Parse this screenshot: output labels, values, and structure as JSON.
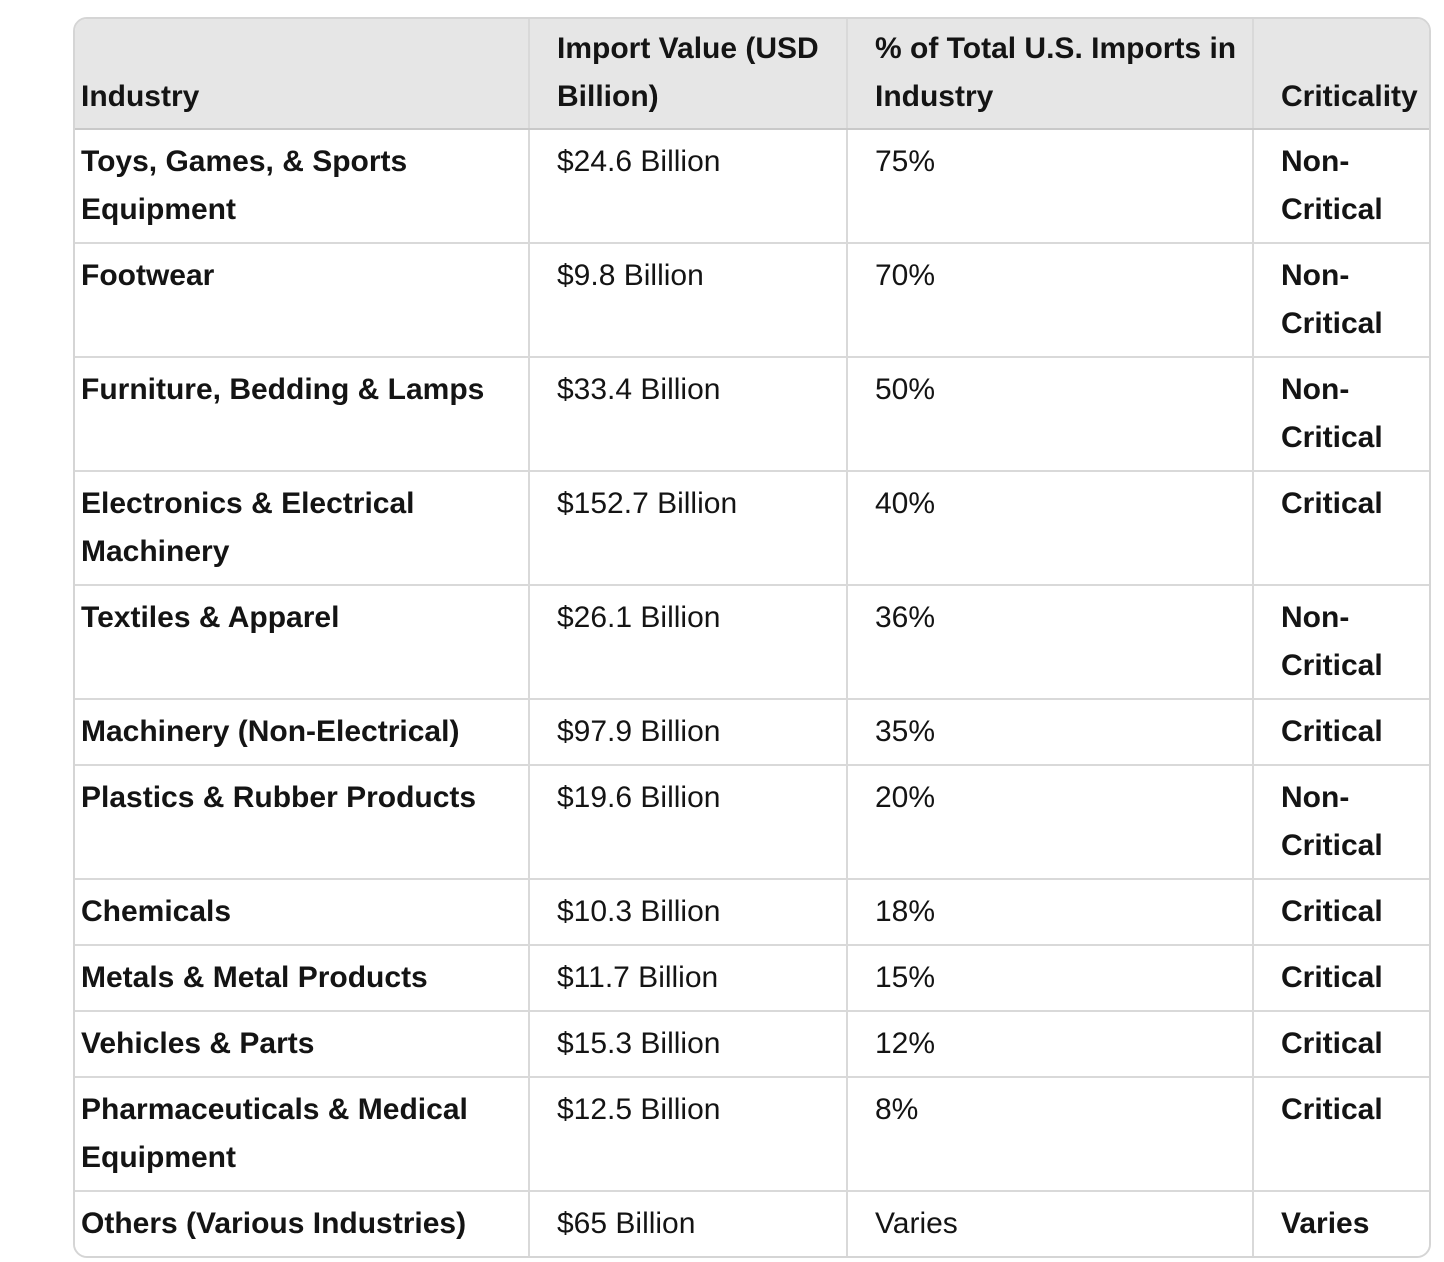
{
  "colors": {
    "page_background": "#ffffff",
    "header_background": "#e6e6e6",
    "grid_border": "#d9d9d9",
    "header_underline": "#c9c9c9",
    "text": "#141414"
  },
  "table": {
    "columns": [
      {
        "label": "Industry"
      },
      {
        "label": "Import Value (USD Billion)"
      },
      {
        "label": "% of Total U.S. Imports in Industry"
      },
      {
        "label": "Criticality"
      }
    ],
    "rows": [
      {
        "industry": "Toys, Games, & Sports Equipment",
        "import_value": "$24.6 Billion",
        "pct_of_imports": "75%",
        "criticality": "Non-Critical"
      },
      {
        "industry": "Footwear",
        "import_value": "$9.8 Billion",
        "pct_of_imports": "70%",
        "criticality": "Non-Critical"
      },
      {
        "industry": "Furniture, Bedding & Lamps",
        "import_value": "$33.4 Billion",
        "pct_of_imports": "50%",
        "criticality": "Non-Critical"
      },
      {
        "industry": "Electronics & Electrical Machinery",
        "import_value": "$152.7 Billion",
        "pct_of_imports": "40%",
        "criticality": "Critical"
      },
      {
        "industry": "Textiles & Apparel",
        "import_value": "$26.1 Billion",
        "pct_of_imports": "36%",
        "criticality": "Non-Critical"
      },
      {
        "industry": "Machinery (Non-Electrical)",
        "import_value": "$97.9 Billion",
        "pct_of_imports": "35%",
        "criticality": "Critical"
      },
      {
        "industry": "Plastics & Rubber Products",
        "import_value": "$19.6 Billion",
        "pct_of_imports": "20%",
        "criticality": "Non-Critical"
      },
      {
        "industry": "Chemicals",
        "import_value": "$10.3 Billion",
        "pct_of_imports": "18%",
        "criticality": "Critical"
      },
      {
        "industry": "Metals & Metal Products",
        "import_value": "$11.7 Billion",
        "pct_of_imports": "15%",
        "criticality": "Critical"
      },
      {
        "industry": "Vehicles & Parts",
        "import_value": "$15.3 Billion",
        "pct_of_imports": "12%",
        "criticality": "Critical"
      },
      {
        "industry": "Pharmaceuticals & Medical Equipment",
        "import_value": "$12.5 Billion",
        "pct_of_imports": "8%",
        "criticality": "Critical"
      },
      {
        "industry": "Others (Various Industries)",
        "import_value": "$65 Billion",
        "pct_of_imports": "Varies",
        "criticality": "Varies"
      }
    ]
  }
}
